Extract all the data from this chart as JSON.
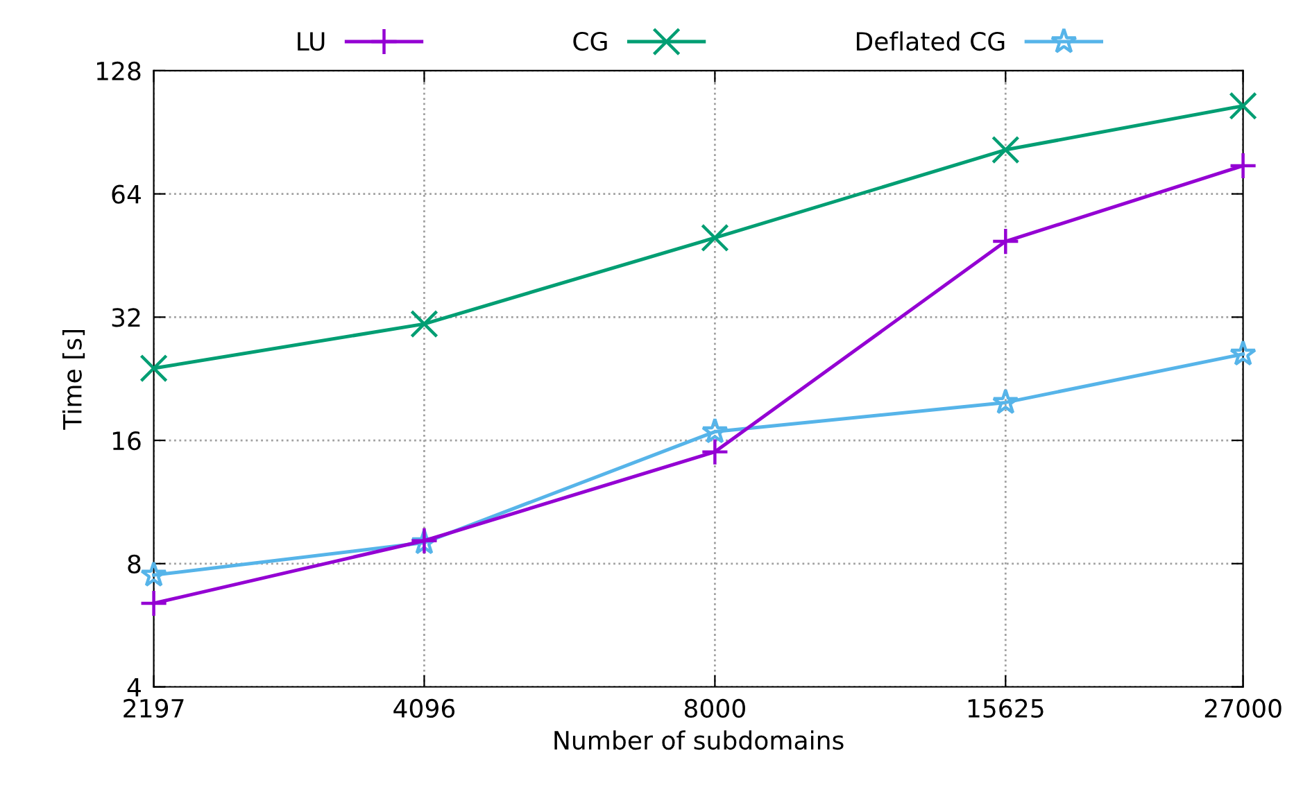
{
  "chart_data": {
    "type": "line",
    "xlabel": "Number of subdomains",
    "ylabel": "Time [s]",
    "x": [
      2197,
      4096,
      8000,
      15625,
      27000
    ],
    "series": [
      {
        "name": "LU",
        "color": "#9400d3",
        "marker": "cross",
        "values": [
          6.4,
          9.1,
          15.0,
          49,
          75
        ]
      },
      {
        "name": "CG",
        "color": "#009e73",
        "marker": "x",
        "values": [
          24.0,
          30.8,
          50,
          82,
          105
        ]
      },
      {
        "name": "Deflated CG",
        "color": "#56b4e9",
        "marker": "star",
        "values": [
          7.5,
          9.0,
          16.8,
          19.8,
          26.0
        ]
      }
    ],
    "log": "xy",
    "xlim": [
      2197,
      27000
    ],
    "xticks": [
      2197,
      4096,
      8000,
      15625,
      27000
    ],
    "ylim": [
      4,
      128
    ],
    "yticks": [
      4,
      8,
      16,
      32,
      64,
      128
    ],
    "grid": true,
    "legend": "top",
    "line_style": "solid"
  }
}
